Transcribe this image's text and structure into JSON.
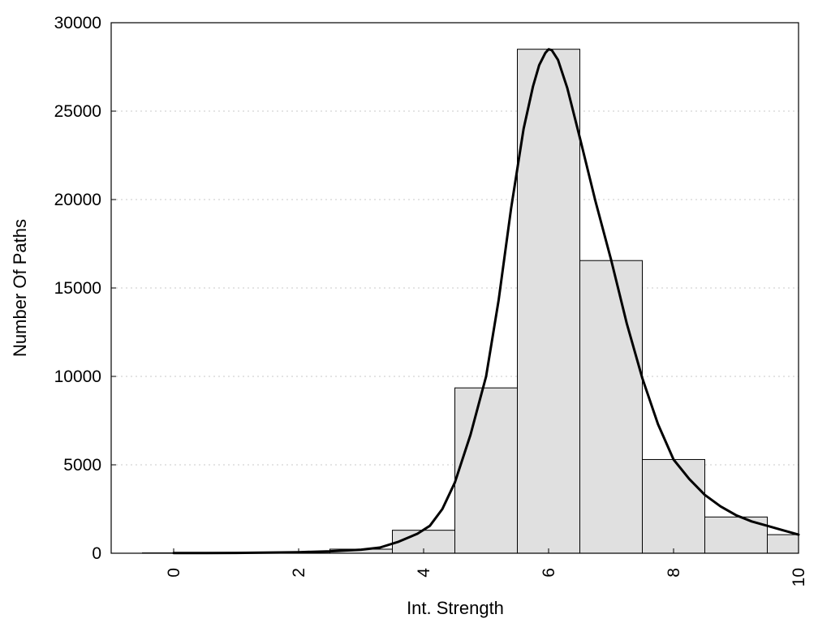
{
  "chart_data": {
    "type": "bar",
    "title": "",
    "xlabel": "Int. Strength",
    "ylabel": "Number Of Paths",
    "xlim": [
      -1,
      10
    ],
    "ylim": [
      0,
      30000
    ],
    "x_ticks": [
      0,
      2,
      4,
      6,
      8,
      10
    ],
    "y_ticks": [
      0,
      5000,
      10000,
      15000,
      20000,
      25000,
      30000
    ],
    "grid": "horizontal dotted",
    "legend": "none",
    "bar_color": "#e0e0e0",
    "bins": [
      {
        "center": 0,
        "value": 20
      },
      {
        "center": 1,
        "value": 30
      },
      {
        "center": 2,
        "value": 60
      },
      {
        "center": 3,
        "value": 230
      },
      {
        "center": 4,
        "value": 1300
      },
      {
        "center": 5,
        "value": 9350
      },
      {
        "center": 6,
        "value": 28500
      },
      {
        "center": 7,
        "value": 16550
      },
      {
        "center": 8,
        "value": 5300
      },
      {
        "center": 9,
        "value": 2050
      },
      {
        "center": 10,
        "value": 1050
      }
    ],
    "curve": {
      "x": [
        0,
        1,
        2,
        2.5,
        3,
        3.3,
        3.6,
        3.9,
        4.1,
        4.3,
        4.5,
        4.75,
        5,
        5.2,
        5.4,
        5.6,
        5.75,
        5.85,
        5.95,
        6.0,
        6.05,
        6.15,
        6.3,
        6.5,
        6.75,
        7,
        7.25,
        7.5,
        7.75,
        8,
        8.25,
        8.5,
        8.75,
        9,
        9.25,
        9.5,
        9.75,
        10
      ],
      "y": [
        10,
        20,
        60,
        110,
        200,
        320,
        650,
        1100,
        1550,
        2500,
        4000,
        6700,
        10000,
        14300,
        19500,
        24000,
        26400,
        27600,
        28300,
        28500,
        28450,
        27900,
        26300,
        23500,
        19900,
        16600,
        13000,
        9900,
        7300,
        5300,
        4200,
        3300,
        2650,
        2150,
        1800,
        1550,
        1300,
        1050
      ]
    }
  }
}
